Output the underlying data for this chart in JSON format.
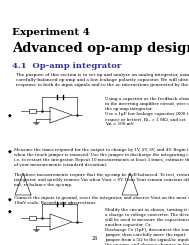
{
  "title_line1": "Experiment 4",
  "title_line2": "Advanced op-amp designs",
  "section": "4.1  Op-amp integrator",
  "body1": "The purpose of this section is to set up and analyze an analog integrator, using a\ncarefully-balanced op-amp and a low leakage polarity capacitor. We will observe the circuit\nresponse to both dc input signals and to the ac interactions generated by the Fu.",
  "bullet1_text": "Using a capacitor as the feedback element\nin the inverting amplifier circuit, wire up\nthe op-amp integrator.\nUse a 1μF low leakage capacitor (X00 tol-\nerance or better), Ri₁ = 1 MΩ, and set\nVᵢn = 100 mV.",
  "bullet2_text": "Measure the times required for the output to change by 1V, 2V, 3V, and 4V. Begin the timing\nwhen the touch jumper is removed. Use the jumper to discharge the integrating capacitor,\ni.e. to restart the integrator. Repeat 10 measurements at least 3 times, estimate the precision\nof your measurements (standard deviation).\n\nThe above measurements require that the op-amp be well-balanced. To test, restart the\nintegrator, and quickly remove Vin when Vout = 0V. Does Vout remain constant after this? If\nnot, re-balance the op-amp.",
  "bullet3_text": "Connect the inputs to ground, reset the integrator, and observe Vout on the most sensitive\n10mV scale. Record your observations.",
  "bullet4_text": "Modify the circuit as shown, turning it into\na charge to voltage converter. The device\nwill be used to measure the capacitance of\nanother capacitor, Cx.\nDischarge Cx (1μF), disconnect the touch\njumper, then carefully move the input\njumper from a 5Ω to the signal/ac input of\nthe op-amp, and observe changes in Vout.\nRepeat several times.",
  "background": "#ffffff",
  "text_color": "#000000",
  "title1_fontsize": 7.5,
  "title2_fontsize": 9.5,
  "section_fontsize": 6.0,
  "body_fontsize": 3.2,
  "bullet_fontsize": 3.0,
  "page_num": "26"
}
